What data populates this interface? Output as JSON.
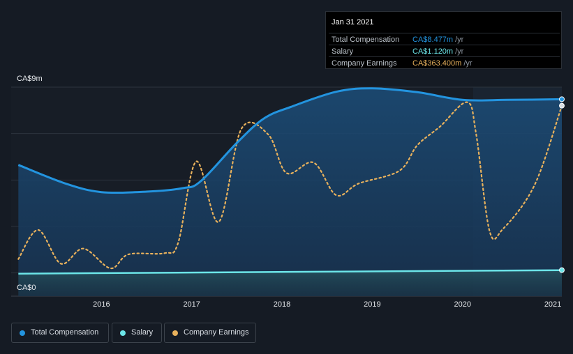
{
  "tooltip": {
    "date": "Jan 31 2021",
    "rows": [
      {
        "label": "Total Compensation",
        "value": "CA$8.477m",
        "unit": "/yr",
        "color": "#2394df"
      },
      {
        "label": "Salary",
        "value": "CA$1.120m",
        "unit": "/yr",
        "color": "#6ce5e8"
      },
      {
        "label": "Company Earnings",
        "value": "CA$363.400m",
        "unit": "/yr",
        "color": "#e8b15c"
      }
    ]
  },
  "legend": [
    {
      "label": "Total Compensation",
      "color": "#2394df"
    },
    {
      "label": "Salary",
      "color": "#6ce5e8"
    },
    {
      "label": "Company Earnings",
      "color": "#e8b15c"
    }
  ],
  "chart_data": {
    "type": "line",
    "y_axis": {
      "top_label": "CA$9m",
      "bottom_label": "CA$0",
      "ylim": [
        0,
        9
      ]
    },
    "x_axis": {
      "ticks": [
        "2016",
        "2017",
        "2018",
        "2019",
        "2020",
        "2021"
      ],
      "xlim": [
        2015.0,
        2021.1
      ]
    },
    "grid": true,
    "series": [
      {
        "name": "Total Compensation",
        "unit": "CA$m",
        "color": "#2394df",
        "x": [
          2015.08,
          2015.6,
          2016.0,
          2016.5,
          2016.9,
          2017.1,
          2017.5,
          2017.8,
          2018.1,
          2018.6,
          2019.0,
          2019.5,
          2020.0,
          2020.5,
          2021.1
        ],
        "values": [
          5.65,
          4.85,
          4.48,
          4.5,
          4.65,
          4.95,
          6.6,
          7.65,
          8.15,
          8.8,
          8.95,
          8.78,
          8.45,
          8.45,
          8.477
        ]
      },
      {
        "name": "Salary",
        "unit": "CA$m",
        "color": "#6ce5e8",
        "x": [
          2015.08,
          2021.1
        ],
        "values": [
          0.97,
          1.12
        ]
      },
      {
        "name": "Company Earnings",
        "unit": "CA$m (relative scale)",
        "color": "#e8b15c",
        "x": [
          2015.08,
          2015.3,
          2015.55,
          2015.8,
          2016.1,
          2016.3,
          2016.7,
          2016.85,
          2017.05,
          2017.3,
          2017.55,
          2017.85,
          2018.05,
          2018.35,
          2018.6,
          2018.85,
          2019.3,
          2019.5,
          2019.75,
          2020.05,
          2020.15,
          2020.3,
          2020.45,
          2020.8,
          2021.1
        ],
        "values": [
          1.6,
          2.85,
          1.4,
          2.05,
          1.2,
          1.8,
          1.85,
          2.3,
          5.8,
          3.2,
          7.2,
          6.95,
          5.3,
          5.75,
          4.35,
          4.85,
          5.4,
          6.5,
          7.3,
          8.35,
          7.0,
          2.8,
          2.9,
          4.8,
          8.2
        ]
      }
    ]
  }
}
